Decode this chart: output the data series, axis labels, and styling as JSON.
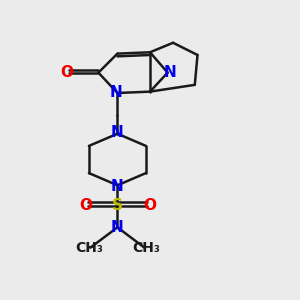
{
  "bg_color": "#ebebeb",
  "bond_color": "#1a1a1a",
  "N_color": "#0000ee",
  "O_color": "#ee0000",
  "S_color": "#bbbb00",
  "line_width": 1.8,
  "font_size": 11,
  "figsize": [
    3.0,
    3.0
  ],
  "dpi": 100,
  "xlim": [
    0,
    10
  ],
  "ylim": [
    0,
    11
  ]
}
